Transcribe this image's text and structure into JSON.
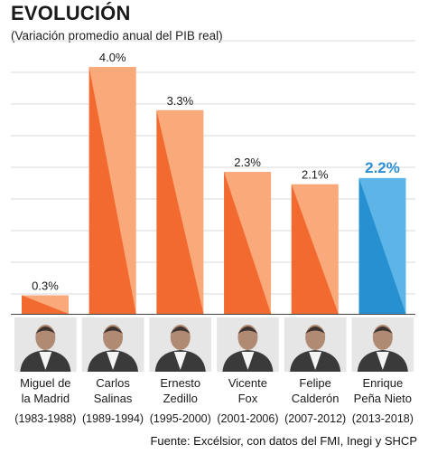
{
  "title": "EVOLUCIÓN",
  "subtitle": "(Variación promedio anual del PIB real)",
  "source": "Fuente: Excélsior, con datos del FMI, Inegi y SHCP",
  "colors": {
    "bar_light": "#f9a97a",
    "bar_dark": "#f26a2f",
    "highlight_light": "#5cb5e6",
    "highlight_dark": "#2790d0",
    "highlight_label": "#2c8fd1",
    "grid": "#d9d9d9"
  },
  "chart_data": {
    "type": "bar",
    "title": "EVOLUCIÓN",
    "subtitle": "(Variación promedio anual del PIB real)",
    "ylim": [
      0,
      4.4
    ],
    "grid": true,
    "categories": [
      "Miguel de la Madrid",
      "Carlos Salinas",
      "Ernesto Zedillo",
      "Vicente Fox",
      "Felipe Calderón",
      "Enrique Peña Nieto"
    ],
    "values": [
      0.3,
      4.0,
      3.3,
      2.3,
      2.1,
      2.2
    ],
    "value_labels": [
      "0.3%",
      "4.0%",
      "3.3%",
      "2.3%",
      "2.1%",
      "2.2%"
    ],
    "highlight_index": 5
  },
  "presidents": [
    {
      "name_line1": "Miguel de",
      "name_line2": "la Madrid",
      "period": "(1983-1988)"
    },
    {
      "name_line1": "Carlos",
      "name_line2": "Salinas",
      "period": "(1989-1994)"
    },
    {
      "name_line1": "Ernesto",
      "name_line2": "Zedillo",
      "period": "(1995-2000)"
    },
    {
      "name_line1": "Vicente",
      "name_line2": "Fox",
      "period": "(2001-2006)"
    },
    {
      "name_line1": "Felipe",
      "name_line2": "Calderón",
      "period": "(2007-2012)"
    },
    {
      "name_line1": "Enrique",
      "name_line2": "Peña Nieto",
      "period": "(2013-2018)"
    }
  ]
}
